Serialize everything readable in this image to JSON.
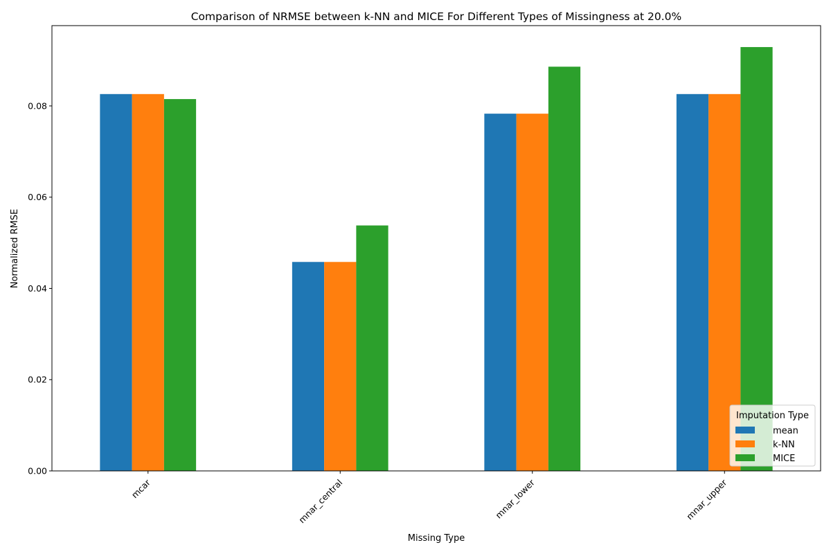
{
  "chart_data": {
    "type": "bar",
    "title": "Comparison of NRMSE between k-NN and MICE For Different Types of Missingness at 20.0%",
    "xlabel": "Missing Type",
    "ylabel": "Normalized RMSE",
    "categories": [
      "mcar",
      "mnar_central",
      "mnar_lower",
      "mnar_upper"
    ],
    "series": [
      {
        "name": "mean",
        "color": "#1f77b4",
        "values": [
          0.0826,
          0.0458,
          0.0783,
          0.0826
        ]
      },
      {
        "name": "k-NN",
        "color": "#ff7f0e",
        "values": [
          0.0826,
          0.0458,
          0.0783,
          0.0826
        ]
      },
      {
        "name": "MICE",
        "color": "#2ca02c",
        "values": [
          0.0815,
          0.0538,
          0.0886,
          0.0929
        ]
      }
    ],
    "ylim": [
      0,
      0.0976
    ],
    "yticks": [
      "0.00",
      "0.02",
      "0.04",
      "0.06",
      "0.08"
    ],
    "grid": false,
    "legend": {
      "title": "Imputation Type",
      "placement": "lower right"
    }
  }
}
